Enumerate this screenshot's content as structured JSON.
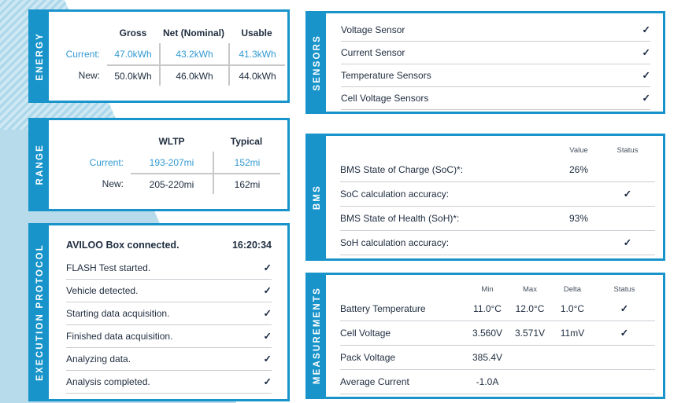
{
  "colors": {
    "accent": "#1894cb",
    "highlight_blue": "#3299d1",
    "text_dark": "#1e2c3e",
    "check_navy": "#1b2a44",
    "background_tint": "#b7dbeb"
  },
  "energy": {
    "title": "ENERGY",
    "columns": [
      "Gross",
      "Net (Nominal)",
      "Usable"
    ],
    "rows": [
      {
        "label": "Current:",
        "values": [
          "47.0kWh",
          "43.2kWh",
          "41.3kWh"
        ]
      },
      {
        "label": "New:",
        "values": [
          "50.0kWh",
          "46.0kWh",
          "44.0kWh"
        ]
      }
    ]
  },
  "range": {
    "title": "RANGE",
    "columns": [
      "WLTP",
      "Typical"
    ],
    "rows": [
      {
        "label": "Current:",
        "values": [
          "193-207mi",
          "152mi"
        ]
      },
      {
        "label": "New:",
        "values": [
          "205-220mi",
          "162mi"
        ]
      }
    ]
  },
  "protocol": {
    "title": "EXECUTION PROTOCOL",
    "header": {
      "label": "AVILOO Box connected.",
      "time": "16:20:34"
    },
    "steps": [
      {
        "label": "FLASH Test started.",
        "status": "✓"
      },
      {
        "label": "Vehicle detected.",
        "status": "✓"
      },
      {
        "label": "Starting data acquisition.",
        "status": "✓"
      },
      {
        "label": "Finished data acquisition.",
        "status": "✓"
      },
      {
        "label": "Analyzing data.",
        "status": "✓"
      },
      {
        "label": "Analysis completed.",
        "status": "✓"
      }
    ]
  },
  "sensors": {
    "title": "SENSORS",
    "items": [
      {
        "label": "Voltage Sensor",
        "status": "✓"
      },
      {
        "label": "Current Sensor",
        "status": "✓"
      },
      {
        "label": "Temperature Sensors",
        "status": "✓"
      },
      {
        "label": "Cell Voltage Sensors",
        "status": "✓"
      }
    ]
  },
  "bms": {
    "title": "BMS",
    "columns": [
      "Value",
      "Status"
    ],
    "rows": [
      {
        "label": "BMS State of Charge (SoC)*:",
        "value": "26%",
        "status": ""
      },
      {
        "label": "SoC calculation accuracy:",
        "value": "",
        "status": "✓"
      },
      {
        "label": "BMS State of Health (SoH)*:",
        "value": "93%",
        "status": ""
      },
      {
        "label": "SoH calculation accuracy:",
        "value": "",
        "status": "✓"
      }
    ]
  },
  "measurements": {
    "title": "MEASUREMENTS",
    "columns": [
      "Min",
      "Max",
      "Delta",
      "Status"
    ],
    "rows": [
      {
        "label": "Battery Temperature",
        "min": "11.0°C",
        "max": "12.0°C",
        "delta": "1.0°C",
        "status": "✓"
      },
      {
        "label": "Cell Voltage",
        "min": "3.560V",
        "max": "3.571V",
        "delta": "11mV",
        "status": "✓"
      },
      {
        "label": "Pack Voltage",
        "min": "385.4V",
        "max": "",
        "delta": "",
        "status": ""
      },
      {
        "label": "Average Current",
        "min": "-1.0A",
        "max": "",
        "delta": "",
        "status": ""
      }
    ]
  }
}
